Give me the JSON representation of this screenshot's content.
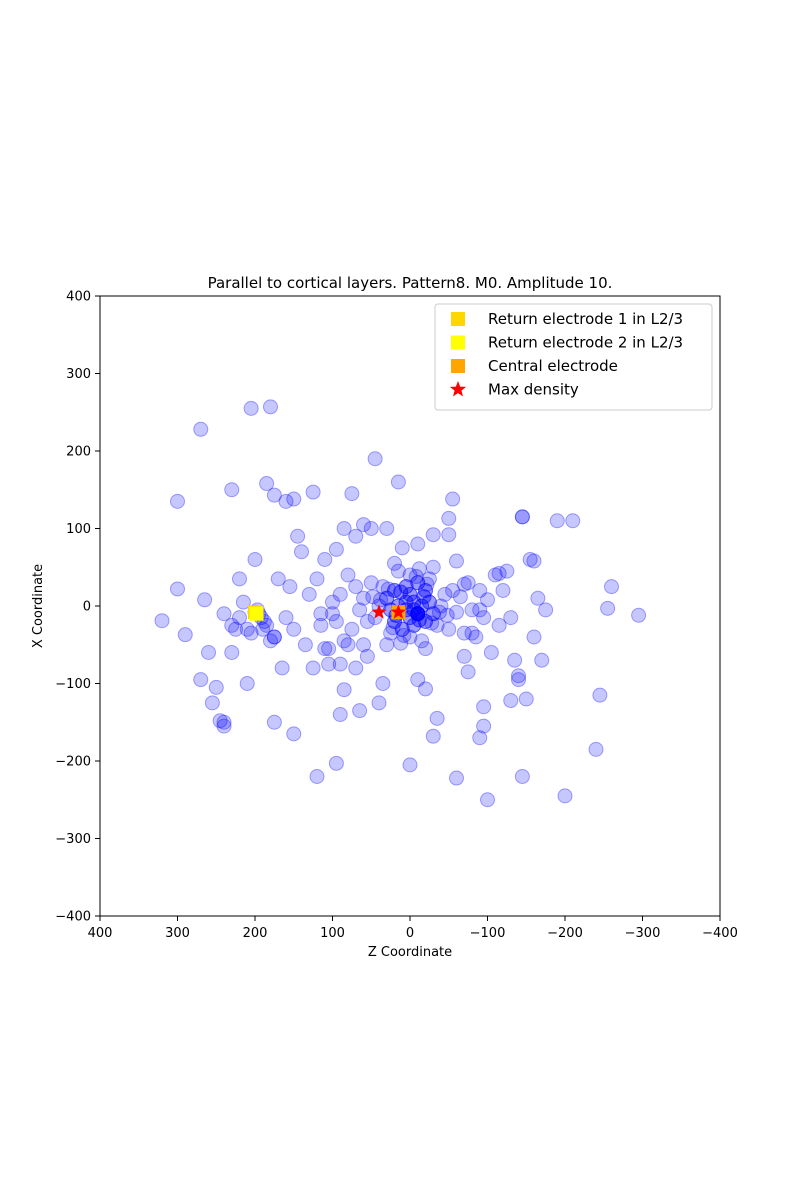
{
  "chart_data": {
    "type": "scatter",
    "title": "Parallel to cortical layers. Pattern8. M0. Amplitude 10.",
    "xlabel": "Z Coordinate",
    "ylabel": "X Coordinate",
    "xlim": [
      400,
      -400
    ],
    "ylim": [
      -400,
      400
    ],
    "x_ticks": [
      400,
      300,
      200,
      100,
      0,
      -100,
      -200,
      -300,
      -400
    ],
    "y_ticks": [
      400,
      300,
      200,
      100,
      0,
      -100,
      -200,
      -300,
      -400
    ],
    "x_tick_labels": [
      "400",
      "300",
      "200",
      "100",
      "0",
      "−100",
      "−200",
      "−300",
      "−400"
    ],
    "y_tick_labels": [
      "400",
      "300",
      "200",
      "100",
      "0",
      "−100",
      "−200",
      "−300",
      "−400"
    ],
    "grid": false,
    "legend_position": "top-right",
    "legend": [
      {
        "label": "Return electrode 1 in L2/3",
        "marker": "square",
        "color": "#ffd700"
      },
      {
        "label": "Return electrode 2 in L2/3",
        "marker": "square",
        "color": "#ffff00"
      },
      {
        "label": "Central electrode",
        "marker": "square",
        "color": "#ffa500"
      },
      {
        "label": "Max density",
        "marker": "star",
        "color": "#ff0000"
      }
    ],
    "series": [
      {
        "marker": "circle",
        "color": "#0000ff",
        "points": [
          [
            -10,
            -10
          ],
          [
            -10,
            -10
          ],
          [
            -10,
            -10
          ],
          [
            -10,
            -10
          ],
          [
            -10,
            -10
          ],
          [
            -10,
            -10
          ],
          [
            -10,
            -10
          ],
          [
            -10,
            -10
          ],
          [
            -5,
            -5
          ],
          [
            -5,
            -5
          ],
          [
            5,
            5
          ],
          [
            5,
            5
          ],
          [
            -5,
            5
          ],
          [
            -5,
            5
          ],
          [
            5,
            -5
          ],
          [
            5,
            -5
          ],
          [
            -15,
            0
          ],
          [
            -15,
            0
          ],
          [
            0,
            -15
          ],
          [
            0,
            -15
          ],
          [
            15,
            0
          ],
          [
            15,
            0
          ],
          [
            0,
            15
          ],
          [
            0,
            15
          ],
          [
            -12,
            -18
          ],
          [
            -12,
            -18
          ],
          [
            12,
            18
          ],
          [
            12,
            18
          ],
          [
            -18,
            12
          ],
          [
            -18,
            12
          ],
          [
            18,
            -12
          ],
          [
            18,
            -12
          ],
          [
            -20,
            -20
          ],
          [
            -20,
            -20
          ],
          [
            20,
            20
          ],
          [
            20,
            20
          ],
          [
            -20,
            20
          ],
          [
            -20,
            20
          ],
          [
            20,
            -20
          ],
          [
            20,
            -20
          ],
          [
            -25,
            5
          ],
          [
            -25,
            5
          ],
          [
            25,
            -5
          ],
          [
            25,
            -5
          ],
          [
            5,
            25
          ],
          [
            5,
            25
          ],
          [
            -5,
            -25
          ],
          [
            -5,
            -25
          ],
          [
            -30,
            -10
          ],
          [
            -30,
            -10
          ],
          [
            30,
            10
          ],
          [
            30,
            10
          ],
          [
            10,
            -30
          ],
          [
            10,
            -30
          ],
          [
            -10,
            30
          ],
          [
            -10,
            30
          ],
          [
            -35,
            -25
          ],
          [
            35,
            25
          ],
          [
            -25,
            35
          ],
          [
            25,
            -35
          ],
          [
            40,
            0
          ],
          [
            -40,
            0
          ],
          [
            0,
            40
          ],
          [
            0,
            -40
          ],
          [
            -45,
            15
          ],
          [
            45,
            -15
          ],
          [
            15,
            45
          ],
          [
            -15,
            -45
          ],
          [
            -50,
            -30
          ],
          [
            50,
            30
          ],
          [
            30,
            -50
          ],
          [
            -30,
            50
          ],
          [
            22,
            -28
          ],
          [
            -22,
            28
          ],
          [
            28,
            22
          ],
          [
            -28,
            -22
          ],
          [
            8,
            -38
          ],
          [
            -8,
            38
          ],
          [
            38,
            8
          ],
          [
            -38,
            -8
          ],
          [
            48,
            12
          ],
          [
            -48,
            -12
          ],
          [
            12,
            -48
          ],
          [
            -12,
            48
          ],
          [
            55,
            -20
          ],
          [
            -55,
            20
          ],
          [
            20,
            55
          ],
          [
            -20,
            -55
          ],
          [
            195,
            -10
          ],
          [
            197,
            -5
          ],
          [
            192,
            -15
          ],
          [
            200,
            -8
          ],
          [
            188,
            -20
          ],
          [
            185,
            -25
          ],
          [
            190,
            -30
          ],
          [
            210,
            -30
          ],
          [
            205,
            -35
          ],
          [
            180,
            -45
          ],
          [
            175,
            -40
          ],
          [
            215,
            5
          ],
          [
            220,
            -15
          ],
          [
            225,
            -30
          ],
          [
            230,
            -25
          ],
          [
            240,
            -10
          ],
          [
            60,
            10
          ],
          [
            65,
            -5
          ],
          [
            70,
            25
          ],
          [
            75,
            -30
          ],
          [
            80,
            40
          ],
          [
            85,
            -45
          ],
          [
            90,
            15
          ],
          [
            95,
            -20
          ],
          [
            -60,
            -8
          ],
          [
            -65,
            12
          ],
          [
            -70,
            -35
          ],
          [
            -75,
            30
          ],
          [
            -80,
            -5
          ],
          [
            -85,
            -40
          ],
          [
            -90,
            20
          ],
          [
            -95,
            -15
          ],
          [
            100,
            5
          ],
          [
            105,
            -55
          ],
          [
            110,
            60
          ],
          [
            115,
            -25
          ],
          [
            120,
            35
          ],
          [
            125,
            -80
          ],
          [
            130,
            15
          ],
          [
            135,
            -50
          ],
          [
            -100,
            8
          ],
          [
            -105,
            -60
          ],
          [
            -110,
            40
          ],
          [
            -115,
            -25
          ],
          [
            -120,
            20
          ],
          [
            -125,
            45
          ],
          [
            -130,
            -15
          ],
          [
            -135,
            -70
          ],
          [
            140,
            70
          ],
          [
            145,
            90
          ],
          [
            150,
            -30
          ],
          [
            155,
            25
          ],
          [
            160,
            -15
          ],
          [
            165,
            -80
          ],
          [
            170,
            35
          ],
          [
            175,
            -40
          ],
          [
            -140,
            -90
          ],
          [
            -145,
            115
          ],
          [
            -150,
            -120
          ],
          [
            -155,
            60
          ],
          [
            -160,
            -40
          ],
          [
            -165,
            10
          ],
          [
            -170,
            -70
          ],
          [
            -175,
            -5
          ],
          [
            200,
            60
          ],
          [
            210,
            -100
          ],
          [
            220,
            35
          ],
          [
            230,
            -60
          ],
          [
            240,
            -150
          ],
          [
            250,
            -105
          ],
          [
            260,
            -60
          ],
          [
            270,
            -95
          ],
          [
            -200,
            -245
          ],
          [
            -210,
            110
          ],
          [
            -240,
            -185
          ],
          [
            -245,
            -115
          ],
          [
            -255,
            -3
          ],
          [
            -260,
            25
          ],
          [
            -295,
            -12
          ],
          [
            -145,
            -220
          ],
          [
            300,
            135
          ],
          [
            300,
            22
          ],
          [
            290,
            -37
          ],
          [
            320,
            -19
          ],
          [
            270,
            228
          ],
          [
            265,
            8
          ],
          [
            255,
            -125
          ],
          [
            245,
            -148
          ],
          [
            205,
            255
          ],
          [
            180,
            257
          ],
          [
            185,
            158
          ],
          [
            175,
            143
          ],
          [
            150,
            138
          ],
          [
            160,
            135
          ],
          [
            125,
            147
          ],
          [
            75,
            145
          ],
          [
            45,
            190
          ],
          [
            15,
            160
          ],
          [
            -55,
            138
          ],
          [
            -50,
            113
          ],
          [
            -145,
            115
          ],
          [
            -190,
            110
          ],
          [
            -160,
            58
          ],
          [
            -115,
            42
          ],
          [
            230,
            150
          ],
          [
            240,
            -155
          ],
          [
            175,
            -150
          ],
          [
            150,
            -165
          ],
          [
            120,
            -220
          ],
          [
            95,
            -203
          ],
          [
            0,
            -205
          ],
          [
            -60,
            -222
          ],
          [
            -100,
            -250
          ],
          [
            -95,
            -155
          ],
          [
            -90,
            -170
          ],
          [
            -95,
            -130
          ],
          [
            -130,
            -122
          ],
          [
            -140,
            -95
          ],
          [
            -30,
            -168
          ],
          [
            -35,
            -145
          ],
          [
            90,
            -140
          ],
          [
            85,
            -108
          ],
          [
            65,
            -135
          ],
          [
            55,
            -65
          ],
          [
            40,
            -125
          ],
          [
            35,
            -100
          ],
          [
            -20,
            -107
          ],
          [
            -10,
            -95
          ],
          [
            95,
            73
          ],
          [
            85,
            100
          ],
          [
            70,
            90
          ],
          [
            60,
            105
          ],
          [
            50,
            100
          ],
          [
            30,
            100
          ],
          [
            10,
            75
          ],
          [
            -10,
            80
          ],
          [
            -30,
            92
          ],
          [
            -50,
            92
          ],
          [
            -60,
            58
          ],
          [
            -70,
            28
          ],
          [
            -80,
            -35
          ],
          [
            -90,
            -5
          ],
          [
            -75,
            -85
          ],
          [
            -70,
            -65
          ],
          [
            115,
            -10
          ],
          [
            110,
            -55
          ],
          [
            105,
            -75
          ],
          [
            100,
            -10
          ],
          [
            90,
            -75
          ],
          [
            80,
            -50
          ],
          [
            70,
            -80
          ],
          [
            60,
            -50
          ]
        ]
      }
    ],
    "electrodes": [
      {
        "name": "Return electrode 1 in L2/3",
        "x": 200,
        "y": -8,
        "color": "#ffd700"
      },
      {
        "name": "Return electrode 2 in L2/3",
        "x": 198,
        "y": -10,
        "color": "#ffff00"
      },
      {
        "name": "Central electrode",
        "x": 15,
        "y": -8,
        "color": "#ffa500"
      }
    ],
    "max_density": [
      {
        "x": 40,
        "y": -8
      },
      {
        "x": 15,
        "y": -8
      }
    ]
  }
}
